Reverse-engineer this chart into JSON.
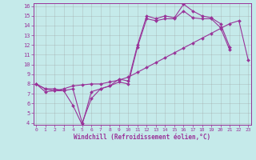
{
  "xlabel": "Windchill (Refroidissement éolien,°C)",
  "xlim": [
    0,
    23
  ],
  "ylim": [
    4,
    16
  ],
  "xticks": [
    0,
    1,
    2,
    3,
    4,
    5,
    6,
    7,
    8,
    9,
    10,
    11,
    12,
    13,
    14,
    15,
    16,
    17,
    18,
    19,
    20,
    21,
    22,
    23
  ],
  "yticks": [
    4,
    5,
    6,
    7,
    8,
    9,
    10,
    11,
    12,
    13,
    14,
    15,
    16
  ],
  "bg_color": "#c5eaea",
  "line_color": "#993399",
  "grid_color": "#999999",
  "line1_y": [
    8.0,
    7.5,
    7.5,
    7.3,
    5.8,
    3.8,
    7.2,
    7.5,
    7.8,
    8.5,
    8.3,
    12.0,
    15.0,
    14.7,
    15.0,
    14.8,
    16.2,
    15.5,
    15.0,
    14.8,
    14.2,
    11.8,
    null,
    null
  ],
  "line2_y": [
    8.0,
    7.5,
    7.3,
    7.5,
    7.8,
    7.9,
    8.0,
    8.0,
    8.2,
    8.4,
    8.7,
    9.2,
    9.7,
    10.2,
    10.7,
    11.2,
    11.7,
    12.2,
    12.7,
    13.2,
    13.7,
    14.2,
    14.5,
    10.5
  ],
  "line3_y": [
    8.0,
    7.2,
    7.3,
    7.3,
    7.5,
    4.0,
    6.5,
    7.5,
    7.8,
    8.2,
    8.0,
    11.8,
    14.7,
    14.5,
    14.7,
    14.7,
    15.5,
    14.8,
    14.7,
    14.7,
    13.8,
    11.5,
    null,
    null
  ]
}
